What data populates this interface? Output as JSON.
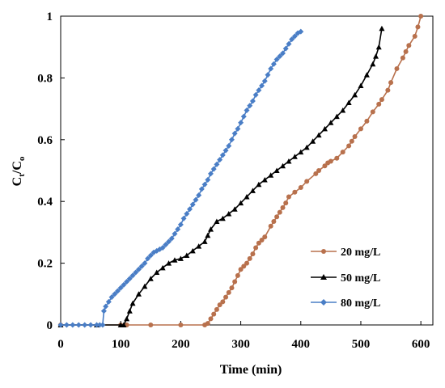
{
  "chart_data": {
    "type": "line",
    "title": "",
    "xlabel": "Time (min)",
    "ylabel_main": "C",
    "ylabel_sub1": "t",
    "ylabel_sep": "/C",
    "ylabel_sub2": "o",
    "xlim": [
      0,
      620
    ],
    "ylim": [
      0,
      1
    ],
    "xticks": [
      0,
      100,
      200,
      300,
      400,
      500,
      600
    ],
    "yticks": [
      0,
      0.2,
      0.4,
      0.6,
      0.8,
      1
    ],
    "ytick_labels": [
      "0",
      "0.2",
      "0.4",
      "0.6",
      "0.8",
      "1"
    ],
    "grid": false,
    "legend_position": "bottom-right",
    "series": [
      {
        "name": "20 mg/L",
        "color": "#b8714d",
        "marker": "circle",
        "x": [
          0,
          100,
          110,
          150,
          200,
          240,
          245,
          250,
          255,
          260,
          265,
          270,
          275,
          280,
          285,
          290,
          295,
          300,
          305,
          310,
          315,
          320,
          325,
          330,
          335,
          340,
          350,
          355,
          360,
          365,
          370,
          375,
          380,
          390,
          400,
          410,
          425,
          430,
          440,
          445,
          450,
          460,
          470,
          480,
          485,
          490,
          500,
          510,
          520,
          530,
          535,
          545,
          550,
          560,
          570,
          575,
          580,
          590,
          595,
          600
        ],
        "y": [
          0,
          0,
          0,
          0,
          0,
          0,
          0.005,
          0.02,
          0.035,
          0.05,
          0.065,
          0.075,
          0.09,
          0.105,
          0.12,
          0.14,
          0.16,
          0.18,
          0.19,
          0.2,
          0.215,
          0.23,
          0.25,
          0.265,
          0.275,
          0.285,
          0.32,
          0.335,
          0.35,
          0.365,
          0.38,
          0.395,
          0.415,
          0.43,
          0.445,
          0.465,
          0.49,
          0.5,
          0.515,
          0.525,
          0.53,
          0.54,
          0.56,
          0.58,
          0.595,
          0.61,
          0.635,
          0.66,
          0.69,
          0.715,
          0.73,
          0.76,
          0.785,
          0.83,
          0.865,
          0.885,
          0.905,
          0.935,
          0.965,
          1.0
        ]
      },
      {
        "name": "50 mg/L",
        "color": "#000000",
        "marker": "triangle",
        "x": [
          0,
          60,
          100,
          105,
          110,
          115,
          120,
          130,
          140,
          150,
          160,
          170,
          180,
          190,
          200,
          210,
          220,
          230,
          240,
          245,
          250,
          260,
          270,
          280,
          290,
          300,
          310,
          320,
          330,
          340,
          350,
          360,
          370,
          380,
          390,
          400,
          410,
          420,
          430,
          440,
          450,
          460,
          470,
          480,
          490,
          500,
          510,
          520,
          525,
          530,
          535
        ],
        "y": [
          0,
          0,
          0,
          0,
          0.02,
          0.045,
          0.07,
          0.1,
          0.125,
          0.15,
          0.17,
          0.185,
          0.2,
          0.21,
          0.215,
          0.225,
          0.24,
          0.255,
          0.27,
          0.29,
          0.31,
          0.335,
          0.345,
          0.36,
          0.375,
          0.395,
          0.415,
          0.435,
          0.455,
          0.47,
          0.485,
          0.5,
          0.515,
          0.53,
          0.545,
          0.56,
          0.575,
          0.595,
          0.615,
          0.635,
          0.655,
          0.675,
          0.695,
          0.72,
          0.745,
          0.775,
          0.81,
          0.845,
          0.87,
          0.9,
          0.96
        ]
      },
      {
        "name": "80 mg/L",
        "color": "#4a7ec6",
        "marker": "diamond",
        "x": [
          0,
          10,
          20,
          30,
          40,
          50,
          60,
          65,
          70,
          72,
          75,
          80,
          85,
          90,
          95,
          100,
          105,
          110,
          115,
          120,
          125,
          130,
          135,
          140,
          145,
          150,
          155,
          160,
          165,
          170,
          175,
          180,
          185,
          190,
          195,
          200,
          205,
          210,
          215,
          220,
          225,
          230,
          235,
          240,
          245,
          250,
          255,
          260,
          265,
          270,
          275,
          280,
          285,
          290,
          295,
          300,
          305,
          310,
          315,
          320,
          325,
          330,
          335,
          340,
          345,
          350,
          355,
          360,
          365,
          370,
          375,
          380,
          385,
          390,
          395,
          400
        ],
        "y": [
          0,
          0,
          0,
          0,
          0,
          0,
          0,
          0,
          0,
          0.045,
          0.06,
          0.075,
          0.09,
          0.1,
          0.11,
          0.12,
          0.13,
          0.14,
          0.15,
          0.16,
          0.17,
          0.18,
          0.19,
          0.2,
          0.215,
          0.225,
          0.235,
          0.24,
          0.245,
          0.25,
          0.26,
          0.27,
          0.28,
          0.295,
          0.31,
          0.325,
          0.345,
          0.36,
          0.375,
          0.39,
          0.405,
          0.42,
          0.44,
          0.455,
          0.47,
          0.49,
          0.505,
          0.52,
          0.535,
          0.55,
          0.565,
          0.58,
          0.6,
          0.62,
          0.635,
          0.655,
          0.675,
          0.695,
          0.71,
          0.725,
          0.745,
          0.76,
          0.775,
          0.79,
          0.81,
          0.83,
          0.845,
          0.86,
          0.87,
          0.88,
          0.895,
          0.91,
          0.925,
          0.935,
          0.945,
          0.95
        ]
      }
    ]
  }
}
